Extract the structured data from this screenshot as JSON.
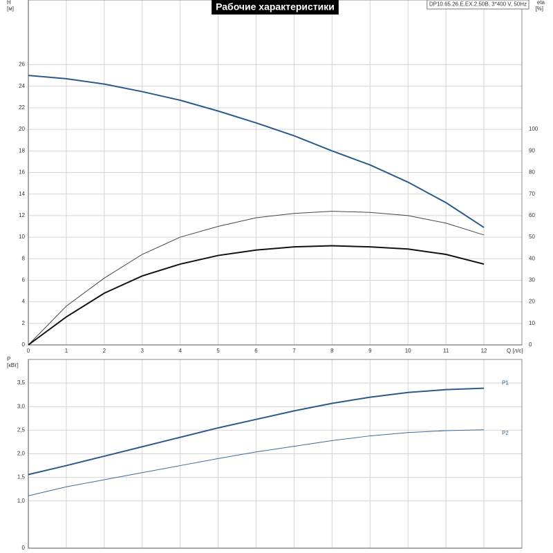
{
  "chart_data": [
    {
      "type": "line",
      "title": "Рабочие характеристики",
      "annotation": "DP10.65.26.E.EX.2.50B, 3*400 V, 50Hz",
      "xlabel": "Q [л/с]",
      "ylabel": "H",
      "yunit": "[м]",
      "y2label": "eta",
      "y2unit": "[%]",
      "x": [
        0,
        1,
        2,
        3,
        4,
        5,
        6,
        7,
        8,
        9,
        10,
        11,
        12
      ],
      "xlim": [
        0,
        13
      ],
      "xticks": [
        0,
        1,
        2,
        3,
        4,
        5,
        6,
        7,
        8,
        9,
        10,
        11,
        12
      ],
      "ylim": [
        0,
        32
      ],
      "yticks": [
        0,
        2,
        4,
        6,
        8,
        10,
        12,
        14,
        16,
        18,
        20,
        22,
        24,
        26
      ],
      "y2lim": [
        0,
        160
      ],
      "y2ticks": [
        0,
        10,
        20,
        30,
        40,
        50,
        60,
        70,
        80,
        90,
        100
      ],
      "grid": true,
      "series": [
        {
          "color": "#2a5a8c",
          "line_width": 2,
          "values": [
            25.0,
            24.7,
            24.2,
            23.5,
            22.7,
            21.7,
            20.6,
            19.4,
            18.0,
            16.7,
            15.1,
            13.2,
            10.9
          ]
        },
        {
          "color": "#444444",
          "line_width": 1,
          "axis": "y2",
          "values": [
            0,
            18,
            31,
            42,
            50,
            55,
            59,
            61,
            62,
            61.5,
            60,
            56.5,
            51
          ]
        },
        {
          "color": "#111111",
          "line_width": 2,
          "axis": "y2",
          "values": [
            0,
            13,
            24,
            32,
            37.5,
            41.5,
            44,
            45.5,
            46,
            45.5,
            44.5,
            42,
            37.5
          ]
        }
      ]
    },
    {
      "type": "line",
      "ylabel": "P",
      "yunit": "[кВт]",
      "x": [
        0,
        1,
        2,
        3,
        4,
        5,
        6,
        7,
        8,
        9,
        10,
        11,
        12
      ],
      "xlim": [
        0,
        13
      ],
      "ylim": [
        0,
        4
      ],
      "yticks": [
        0,
        {
          "value": 1.0,
          "label": "1,0"
        },
        {
          "value": 1.5,
          "label": "1,5"
        },
        {
          "value": 2.0,
          "label": "2,0"
        },
        {
          "value": 2.5,
          "label": "2,5"
        },
        {
          "value": 3.0,
          "label": "3,0"
        },
        {
          "value": 3.5,
          "label": "3,5"
        }
      ],
      "grid": true,
      "series": [
        {
          "name": "P1",
          "color": "#2a5a8c",
          "line_width": 2,
          "values": [
            1.56,
            1.75,
            1.95,
            2.15,
            2.35,
            2.55,
            2.73,
            2.91,
            3.07,
            3.2,
            3.3,
            3.36,
            3.39
          ]
        },
        {
          "name": "P2",
          "color": "#3a6a9c",
          "line_width": 1,
          "values": [
            1.11,
            1.3,
            1.45,
            1.6,
            1.75,
            1.9,
            2.04,
            2.16,
            2.28,
            2.38,
            2.45,
            2.49,
            2.51
          ]
        }
      ]
    }
  ]
}
